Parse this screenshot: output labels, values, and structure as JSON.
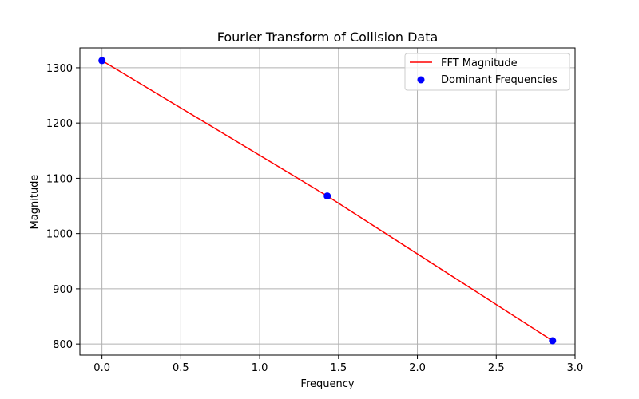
{
  "chart_data": {
    "type": "line",
    "title": "Fourier Transform of Collision Data",
    "xlabel": "Frequency",
    "ylabel": "Magnitude",
    "xlim": [
      -0.14,
      3.0
    ],
    "ylim": [
      780,
      1336
    ],
    "xticks": [
      "0.0",
      "0.5",
      "1.0",
      "1.5",
      "2.0",
      "2.5",
      "3.0"
    ],
    "xtick_values": [
      0.0,
      0.5,
      1.0,
      1.5,
      2.0,
      2.5,
      3.0
    ],
    "yticks": [
      "800",
      "900",
      "1000",
      "1100",
      "1200",
      "1300"
    ],
    "ytick_values": [
      800,
      900,
      1000,
      1100,
      1200,
      1300
    ],
    "grid": true,
    "legend_position": "top-right",
    "series": [
      {
        "name": "FFT Magnitude",
        "kind": "line",
        "color": "#ff0000",
        "x": [
          0.0,
          1.4286,
          2.8571
        ],
        "y": [
          1313,
          1068,
          806
        ]
      },
      {
        "name": "Dominant Frequencies",
        "kind": "scatter",
        "color": "#0000ff",
        "x": [
          0.0,
          1.4286,
          2.8571
        ],
        "y": [
          1313,
          1068,
          806
        ]
      }
    ]
  }
}
